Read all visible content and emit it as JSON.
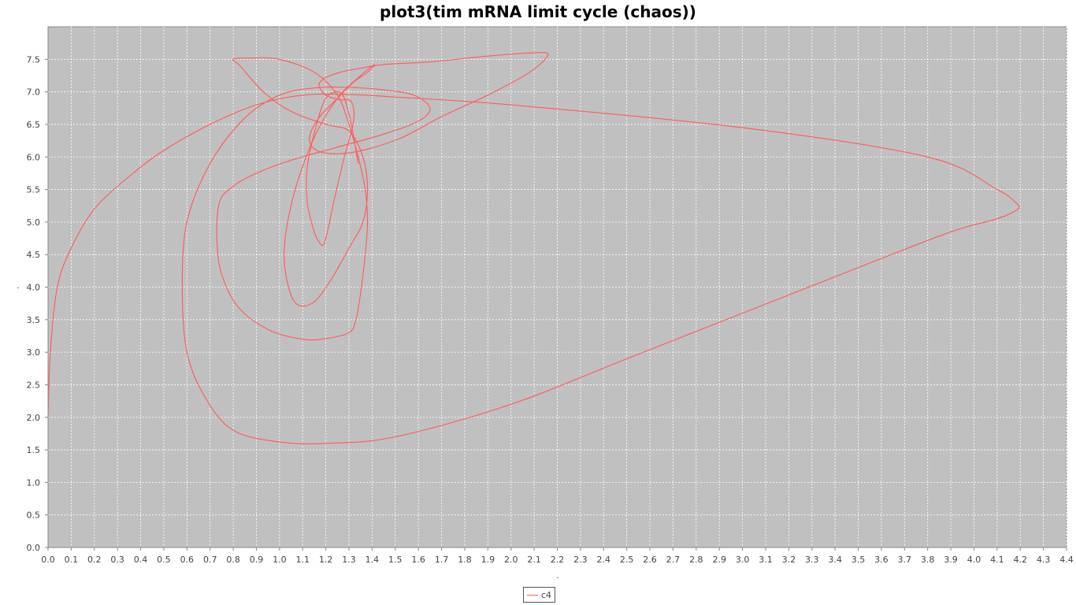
{
  "chart_data": {
    "type": "line",
    "title": "plot3(tim mRNA limit cycle (chaos))",
    "xlabel": ".",
    "ylabel": ".",
    "xlim": [
      0.0,
      4.4
    ],
    "ylim": [
      0.0,
      8.0
    ],
    "x_ticks": [
      "0.0",
      "0.1",
      "0.2",
      "0.3",
      "0.4",
      "0.5",
      "0.6",
      "0.7",
      "0.8",
      "0.9",
      "1.0",
      "1.1",
      "1.2",
      "1.3",
      "1.4",
      "1.5",
      "1.6",
      "1.7",
      "1.8",
      "1.9",
      "2.0",
      "2.1",
      "2.2",
      "2.3",
      "2.4",
      "2.5",
      "2.6",
      "2.7",
      "2.8",
      "2.9",
      "3.0",
      "3.1",
      "3.2",
      "3.3",
      "3.4",
      "3.5",
      "3.6",
      "3.7",
      "3.8",
      "3.9",
      "4.0",
      "4.1",
      "4.2",
      "4.3",
      "4.4"
    ],
    "y_ticks": [
      "0.0",
      "0.5",
      "1.0",
      "1.5",
      "2.0",
      "2.5",
      "3.0",
      "3.5",
      "4.0",
      "4.5",
      "5.0",
      "5.5",
      "6.0",
      "6.5",
      "7.0",
      "7.5"
    ],
    "grid": true,
    "plot_background": "#c0c0c0",
    "series_color": "#ff5a5a",
    "legend_position": "bottom-center",
    "series": [
      {
        "name": "c4",
        "x": [
          0.0,
          0.01,
          0.04,
          0.1,
          0.2,
          0.35,
          0.5,
          0.7,
          0.9,
          1.1,
          1.3,
          1.5,
          2.0,
          3.0,
          3.8,
          4.1,
          4.18,
          4.19,
          4.1,
          3.9,
          3.5,
          3.0,
          2.5,
          2.0,
          1.5,
          1.2,
          1.0,
          0.8,
          0.68,
          0.6,
          0.58,
          0.6,
          0.7,
          0.85,
          1.0,
          1.15,
          1.3,
          1.45,
          1.58,
          1.65,
          1.6,
          1.45,
          1.25,
          1.05,
          0.9,
          0.8,
          0.74,
          0.73,
          0.75,
          0.82,
          0.95,
          1.1,
          1.2,
          1.3,
          1.33,
          1.35,
          1.37,
          1.38,
          1.37,
          1.34,
          1.3,
          1.25,
          1.15,
          1.0,
          0.87,
          0.8,
          0.83,
          0.93,
          1.05,
          1.2,
          1.3,
          1.36,
          1.38,
          1.36,
          1.3,
          1.22,
          1.14,
          1.06,
          1.02,
          1.06,
          1.15,
          1.25,
          1.35,
          1.41,
          1.38,
          1.32,
          1.25,
          1.17,
          1.13,
          1.16,
          1.26,
          1.38,
          1.53,
          1.7,
          1.9,
          2.08,
          2.16,
          2.1,
          1.9,
          1.65,
          1.45,
          1.33,
          1.26,
          1.22,
          1.19,
          1.17,
          1.2,
          1.26,
          1.31,
          1.32,
          1.28,
          1.24,
          1.21,
          1.19,
          1.17,
          1.15,
          1.12,
          1.12,
          1.16,
          1.2,
          1.25,
          1.28,
          1.31,
          1.34
        ],
        "y": [
          2.0,
          3.0,
          4.0,
          4.6,
          5.2,
          5.7,
          6.1,
          6.5,
          6.8,
          6.95,
          6.96,
          6.92,
          6.8,
          6.45,
          6.0,
          5.5,
          5.3,
          5.2,
          5.05,
          4.85,
          4.3,
          3.6,
          2.9,
          2.2,
          1.7,
          1.6,
          1.62,
          1.8,
          2.3,
          3.0,
          4.0,
          5.0,
          5.9,
          6.6,
          6.95,
          7.06,
          7.07,
          7.03,
          6.95,
          6.75,
          6.55,
          6.35,
          6.15,
          5.95,
          5.75,
          5.55,
          5.3,
          4.7,
          4.2,
          3.7,
          3.35,
          3.2,
          3.21,
          3.3,
          3.5,
          3.9,
          4.5,
          5.0,
          5.5,
          6.0,
          6.5,
          6.95,
          7.3,
          7.5,
          7.52,
          7.5,
          7.4,
          7.0,
          6.7,
          6.5,
          6.4,
          6.0,
          5.5,
          5.0,
          4.6,
          4.1,
          3.75,
          3.8,
          4.5,
          5.4,
          6.3,
          6.9,
          7.25,
          7.42,
          7.3,
          7.15,
          6.9,
          6.6,
          6.3,
          6.1,
          6.05,
          6.12,
          6.3,
          6.62,
          6.95,
          7.3,
          7.57,
          7.6,
          7.55,
          7.46,
          7.42,
          7.35,
          7.3,
          7.25,
          7.2,
          7.1,
          6.95,
          6.88,
          6.85,
          6.55,
          6.0,
          5.4,
          4.9,
          4.65,
          4.7,
          4.85,
          5.3,
          5.85,
          6.5,
          6.9,
          7.0,
          6.9,
          6.5,
          5.9
        ]
      }
    ]
  }
}
